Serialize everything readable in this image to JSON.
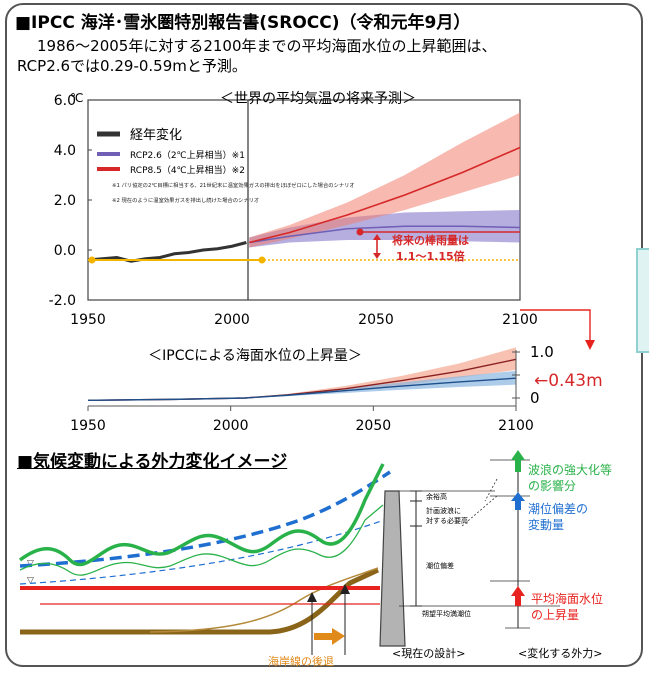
{
  "header": {
    "title": "■IPCC 海洋･雪氷圏特別報告書(SROCC)（令和元年9月）",
    "description_line1": "1986〜2005年に対する2100年までの平均海面水位の上昇範囲は、",
    "description_line2": "RCP2.6では0.29-0.59mと予測。"
  },
  "chart_data": [
    {
      "type": "line",
      "title": "＜世界の平均気温の将来予測＞",
      "ylabel": "℃",
      "xlim": [
        1950,
        2100
      ],
      "ylim": [
        -2.0,
        6.0
      ],
      "xticks": [
        "1950",
        "2000",
        "2050",
        "2100"
      ],
      "yticks": [
        "-2.0",
        "0.0",
        "2.0",
        "4.0",
        "6.0"
      ],
      "legend": {
        "placement": "top-left",
        "entries": [
          {
            "label": "経年変化",
            "color": "#333333"
          },
          {
            "label": "RCP2.6（2℃上昇相当）※1",
            "color": "#6f5fb5"
          },
          {
            "label": "RCP8.5（4℃上昇相当）※2",
            "color": "#d62828"
          }
        ],
        "notes": [
          "※1 パリ協定の2℃目標に相当する、21世紀末に温室効果ガスの排出をほぼゼロにした場合のシナリオ",
          "※2 現在のように温室効果ガスを排出し続けた場合のシナリオ"
        ]
      },
      "series": [
        {
          "name": "経年変化",
          "x": [
            1950,
            1955,
            1960,
            1965,
            1970,
            1975,
            1980,
            1985,
            1990,
            1995,
            2000,
            2005
          ],
          "y": [
            -0.4,
            -0.35,
            -0.3,
            -0.45,
            -0.35,
            -0.3,
            -0.15,
            -0.1,
            0.0,
            0.05,
            0.15,
            0.3
          ]
        },
        {
          "name": "RCP2.6（2℃上昇相当）※1",
          "x": [
            2006,
            2020,
            2040,
            2060,
            2080,
            2100
          ],
          "y": [
            0.3,
            0.55,
            0.85,
            0.95,
            0.95,
            0.9
          ],
          "lower": [
            0.1,
            0.3,
            0.4,
            0.4,
            0.35,
            0.3
          ],
          "upper": [
            0.5,
            0.9,
            1.3,
            1.5,
            1.55,
            1.6
          ]
        },
        {
          "name": "RCP8.5（4℃上昇相当）※2",
          "x": [
            2006,
            2020,
            2040,
            2060,
            2080,
            2100
          ],
          "y": [
            0.3,
            0.7,
            1.4,
            2.2,
            3.1,
            4.1
          ],
          "lower": [
            0.1,
            0.45,
            1.0,
            1.6,
            2.3,
            3.0
          ],
          "upper": [
            0.5,
            1.0,
            1.9,
            3.0,
            4.3,
            5.5
          ]
        }
      ],
      "annotations": [
        {
          "text": "将来の棒雨量は",
          "color": "#d62828"
        },
        {
          "text": "1.1〜1.15倍",
          "color": "#d62828"
        }
      ]
    },
    {
      "type": "area",
      "title": "＜IPCCによる海面水位の上昇量＞",
      "xlim": [
        1950,
        2100
      ],
      "ylim": [
        0,
        1.0
      ],
      "xticks": [
        "1950",
        "2000",
        "2050",
        "2100"
      ],
      "yticks": [
        "0",
        "0.5",
        "1.0"
      ],
      "series": [
        {
          "name": "RCP8.5",
          "x": [
            1950,
            1980,
            2005,
            2020,
            2040,
            2060,
            2080,
            2100
          ],
          "y": [
            -0.05,
            -0.03,
            0.0,
            0.07,
            0.2,
            0.38,
            0.58,
            0.84
          ],
          "lower": [
            -0.05,
            -0.03,
            0.0,
            0.05,
            0.15,
            0.28,
            0.44,
            0.61
          ],
          "upper": [
            -0.05,
            -0.03,
            0.0,
            0.09,
            0.26,
            0.48,
            0.75,
            1.1
          ]
        },
        {
          "name": "RCP2.6",
          "x": [
            1950,
            1980,
            2005,
            2020,
            2040,
            2060,
            2080,
            2100
          ],
          "y": [
            -0.05,
            -0.03,
            0.0,
            0.06,
            0.16,
            0.26,
            0.35,
            0.43
          ],
          "lower": [
            -0.05,
            -0.03,
            0.0,
            0.04,
            0.11,
            0.18,
            0.24,
            0.29
          ],
          "upper": [
            -0.05,
            -0.03,
            0.0,
            0.08,
            0.21,
            0.34,
            0.47,
            0.59
          ]
        }
      ],
      "callout": {
        "text": "←0.43m",
        "color": "#d62828"
      }
    }
  ],
  "section2": {
    "title": "■気候変動による外力変化イメージ",
    "labels": {
      "margin": "余裕高",
      "wave_required_1": "計画波浪に",
      "wave_required_2": "対する必要高",
      "surge": "潮位偏差",
      "tide": "朔望平均満潮位",
      "wave_change_1": "波浪の強大化等",
      "wave_change_2": "の影響分",
      "surge_change_1": "潮位偏差の",
      "surge_change_2": "変動量",
      "sea_level_1": "平均海面水位",
      "sea_level_2": "の上昇量",
      "current_design": "<現在の設計>",
      "changing_force": "<変化する外力>",
      "shoreline": "海岸線の後退"
    },
    "colors": {
      "wave_green": "#2ab24a",
      "surge_blue": "#1f6fd1",
      "sea_red": "#e8231f",
      "ground_brown": "#8a6418",
      "shoreline_orange": "#e08a1a"
    }
  }
}
